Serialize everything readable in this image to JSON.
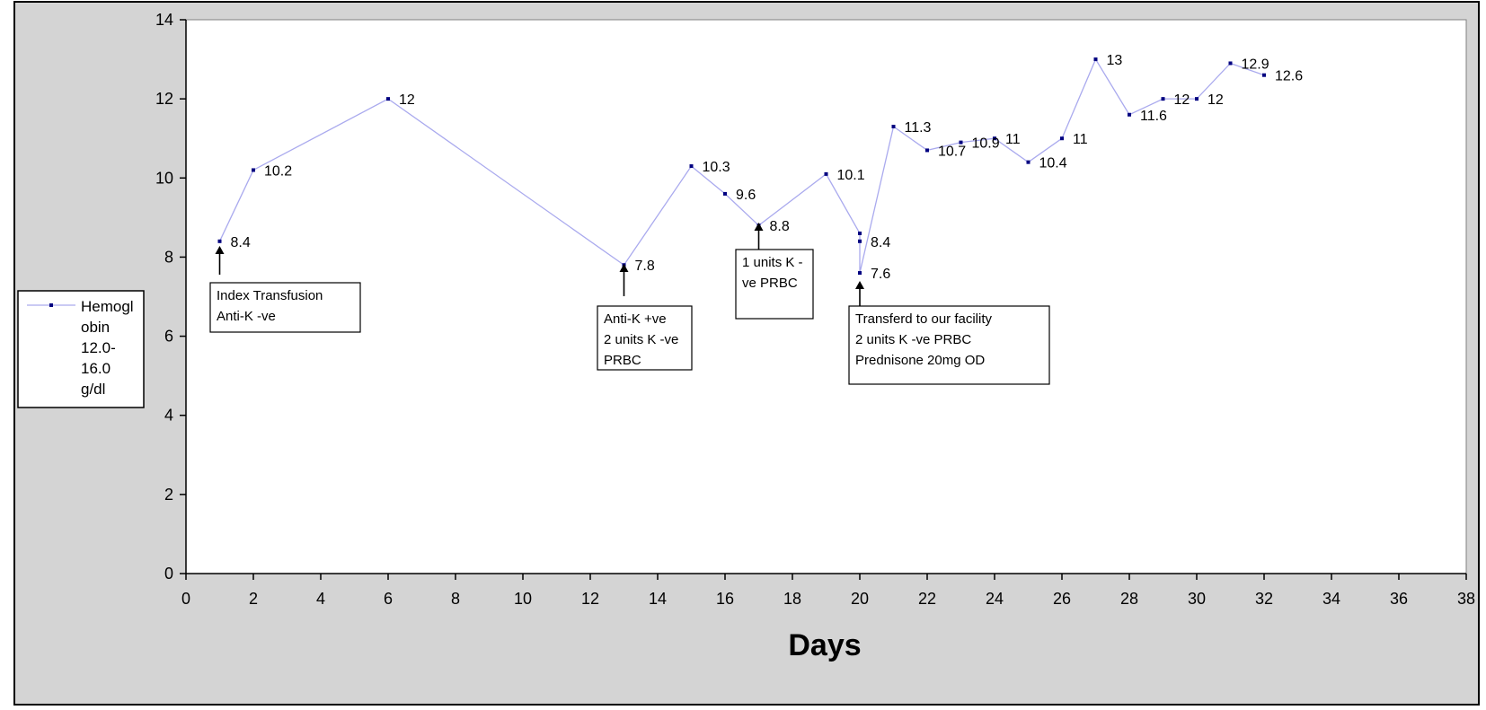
{
  "chart_data": {
    "type": "line",
    "title": "",
    "xlabel": "Days",
    "ylabel": "",
    "xlim": [
      0,
      38
    ],
    "ylim": [
      0,
      14
    ],
    "x_ticks": [
      0,
      2,
      4,
      6,
      8,
      10,
      12,
      14,
      16,
      18,
      20,
      22,
      24,
      26,
      28,
      30,
      32,
      34,
      36,
      38
    ],
    "y_ticks": [
      0,
      2,
      4,
      6,
      8,
      10,
      12,
      14
    ],
    "grid": false,
    "legend_position": "left",
    "series": [
      {
        "name": "Hemoglobin 12.0-16.0 g/dl",
        "color": "#aaaaee",
        "marker_color": "#000080",
        "x": [
          1,
          2,
          6,
          13,
          15,
          16,
          17,
          19,
          20,
          20,
          20,
          21,
          22,
          23,
          24,
          25,
          26,
          27,
          28,
          29,
          30,
          31,
          32
        ],
        "y": [
          8.4,
          10.2,
          12,
          7.8,
          10.3,
          9.6,
          8.8,
          10.1,
          8.6,
          8.4,
          7.6,
          11.3,
          10.7,
          10.9,
          11,
          10.4,
          11,
          13,
          11.6,
          12,
          12,
          12.9,
          12.6
        ],
        "labels": [
          "8.4",
          "10.2",
          "12",
          "7.8",
          "10.3",
          "9.6",
          "8.8",
          "10.1",
          "",
          "8.4",
          "7.6",
          "11.3",
          "10.7",
          "10.9",
          "11",
          "10.4",
          "11",
          "13",
          "11.6",
          "12",
          "12",
          "12.9",
          "12.6"
        ]
      }
    ],
    "legend_lines": [
      "Hemogl",
      "obin",
      "12.0-",
      "16.0",
      "g/dl"
    ],
    "annotations": [
      {
        "lines": [
          "Index Transfusion",
          "Anti-K -ve"
        ],
        "arrow_x": 1
      },
      {
        "lines": [
          "Anti-K +ve",
          "2 units K -ve",
          "PRBC"
        ],
        "arrow_x": 13
      },
      {
        "lines": [
          "1 units K -",
          "ve PRBC"
        ],
        "arrow_x": 17
      },
      {
        "lines": [
          "Transferd to our facility",
          "2 units K -ve PRBC",
          "Prednisone 20mg OD"
        ],
        "arrow_x": 20
      }
    ]
  }
}
